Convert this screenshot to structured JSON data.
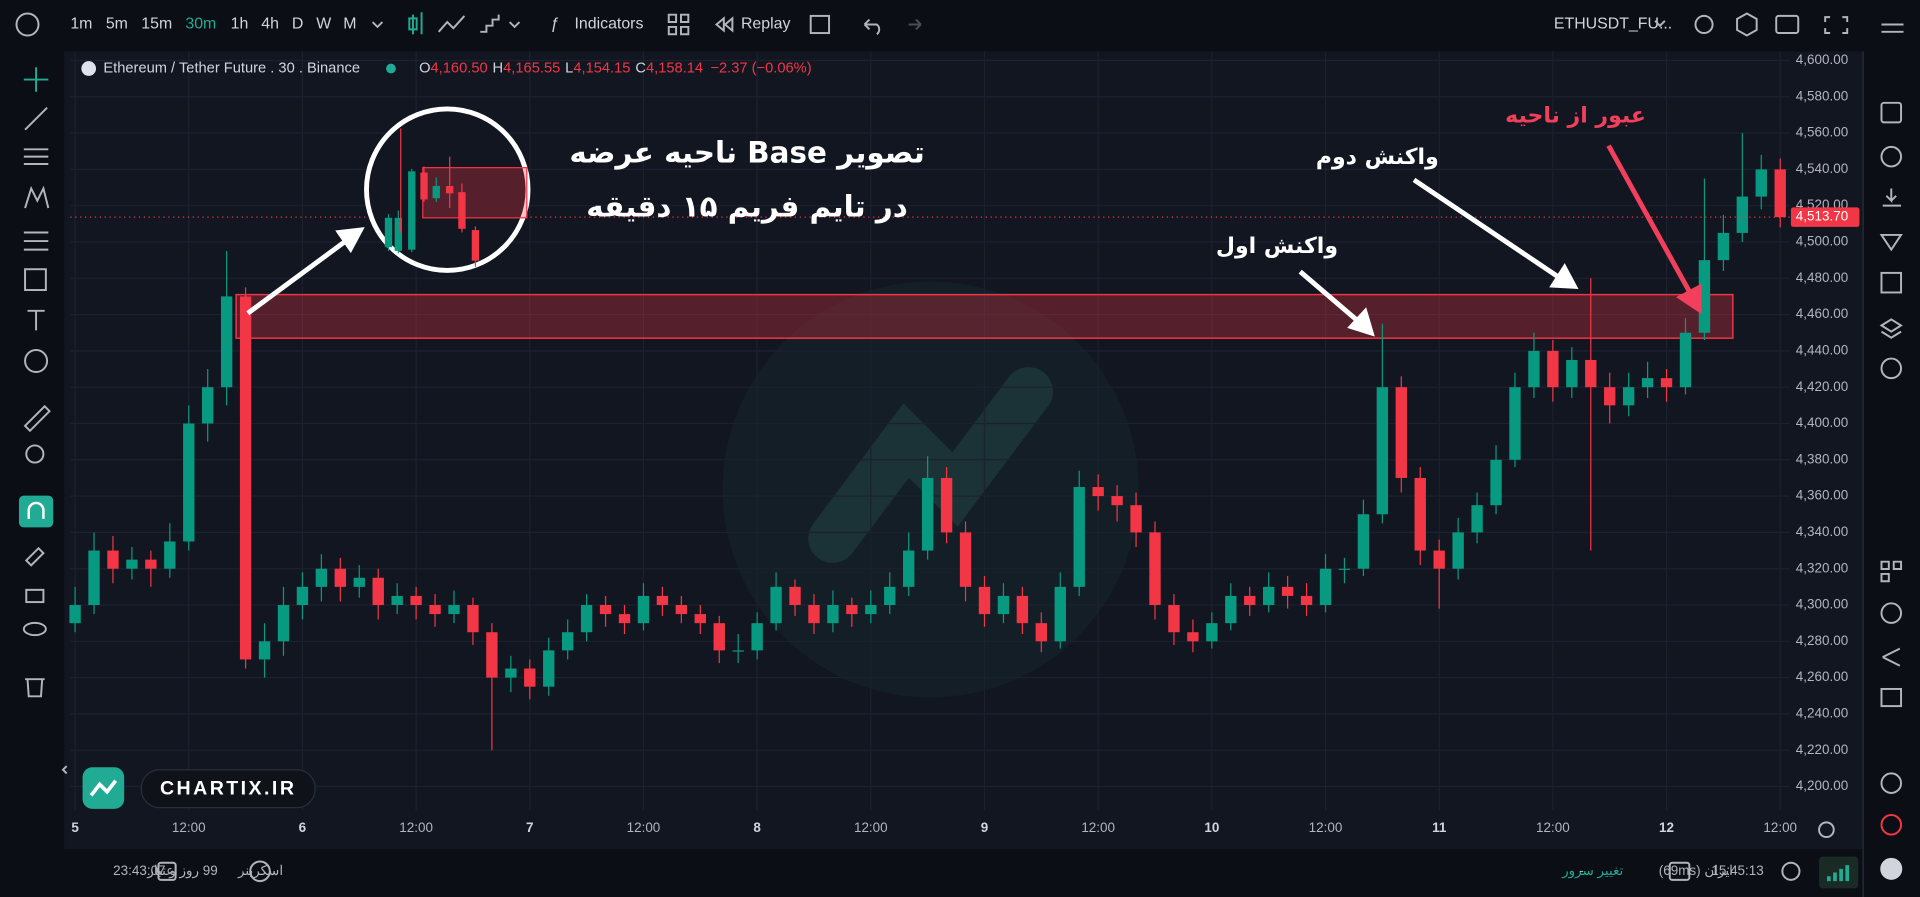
{
  "toolbar": {
    "intervals": [
      "1m",
      "5m",
      "15m",
      "30m",
      "1h",
      "4h",
      "D",
      "W",
      "M"
    ],
    "indicators": "Indicators",
    "replay": "Replay",
    "symbol": "ETHUSDT_FU..."
  },
  "legend": {
    "name": "Ethereum / Tether Future . 30 . Binance",
    "o": "O",
    "o_value": "4,160.50",
    "h": "H",
    "h_value": "4,165.55",
    "l": "L",
    "l_value": "4,154.15",
    "c": "C",
    "c_value": "4,158.14",
    "change": "−2.37 (−0.06%)"
  },
  "annotations": {
    "title_line1": "تصویر Base ناحیه عرضه",
    "title_line2": "در تایم فریم ۱۵ دقیقه",
    "first_reaction": "واکنش اول",
    "second_reaction": "واکنش دوم",
    "breakout": "عبور از ناحیه"
  },
  "brand": "CHARTIX.IR",
  "status_bar": {
    "credit_label": "اعتبار",
    "credit_value": "99 روز و 23:43:07",
    "screener": "اسکرینر",
    "change_server": "تغییر سرور",
    "dash": "-",
    "server": "ایران (69ms)",
    "clock": "15:45:13"
  },
  "chart_data": {
    "type": "candlestick",
    "up_color": "#089981",
    "down_color": "#f23645",
    "grid": true,
    "zone": {
      "top": 4471,
      "bottom": 4447,
      "x_start": 34,
      "x_end": 350,
      "color": "#f23645"
    },
    "last_price_label": "4,513.70",
    "xlim": [
      -1,
      362
    ],
    "xticks": [
      {
        "value": 0,
        "label": "5"
      },
      {
        "value": 24,
        "label": "12:00"
      },
      {
        "value": 48,
        "label": "6"
      },
      {
        "value": 72,
        "label": "12:00"
      },
      {
        "value": 96,
        "label": "7"
      },
      {
        "value": 120,
        "label": "12:00"
      },
      {
        "value": 144,
        "label": "8"
      },
      {
        "value": 168,
        "label": "12:00"
      },
      {
        "value": 192,
        "label": "9"
      },
      {
        "value": 216,
        "label": "12:00"
      },
      {
        "value": 240,
        "label": "10"
      },
      {
        "value": 264,
        "label": "12:00"
      },
      {
        "value": 288,
        "label": "11"
      },
      {
        "value": 312,
        "label": "12:00"
      },
      {
        "value": 336,
        "label": "12"
      },
      {
        "value": 360,
        "label": "12:00"
      }
    ],
    "ylim": [
      4187,
      4605
    ],
    "yticks": [
      {
        "value": 4200,
        "label": "4,200.00"
      },
      {
        "value": 4220,
        "label": "4,220.00"
      },
      {
        "value": 4240,
        "label": "4,240.00"
      },
      {
        "value": 4260,
        "label": "4,260.00"
      },
      {
        "value": 4280,
        "label": "4,280.00"
      },
      {
        "value": 4300,
        "label": "4,300.00"
      },
      {
        "value": 4320,
        "label": "4,320.00"
      },
      {
        "value": 4340,
        "label": "4,340.00"
      },
      {
        "value": 4360,
        "label": "4,360.00"
      },
      {
        "value": 4380,
        "label": "4,380.00"
      },
      {
        "value": 4400,
        "label": "4,400.00"
      },
      {
        "value": 4420,
        "label": "4,420.00"
      },
      {
        "value": 4440,
        "label": "4,440.00"
      },
      {
        "value": 4460,
        "label": "4,460.00"
      },
      {
        "value": 4480,
        "label": "4,480.00"
      },
      {
        "value": 4500,
        "label": "4,500.00"
      },
      {
        "value": 4520,
        "label": "4,520.00"
      },
      {
        "value": 4540,
        "label": "4,540.00"
      },
      {
        "value": 4560,
        "label": "4,560.00"
      },
      {
        "value": 4580,
        "label": "4,580.00"
      },
      {
        "value": 4600,
        "label": "4,600.00"
      }
    ],
    "x": [
      0,
      4,
      8,
      12,
      16,
      20,
      24,
      28,
      32,
      36,
      40,
      44,
      48,
      52,
      56,
      60,
      64,
      68,
      72,
      76,
      80,
      84,
      88,
      92,
      96,
      100,
      104,
      108,
      112,
      116,
      120,
      124,
      128,
      132,
      136,
      140,
      144,
      148,
      152,
      156,
      160,
      164,
      168,
      172,
      176,
      180,
      184,
      188,
      192,
      196,
      200,
      204,
      208,
      212,
      216,
      220,
      224,
      228,
      232,
      236,
      240,
      244,
      248,
      252,
      256,
      260,
      264,
      268,
      272,
      276,
      280,
      284,
      288,
      292,
      296,
      300,
      304,
      308,
      312,
      316,
      320,
      324,
      328,
      332,
      336,
      340,
      344,
      348,
      352,
      356,
      360
    ],
    "ohlc": [
      [
        4290,
        4310,
        4285,
        4300
      ],
      [
        4300,
        4340,
        4295,
        4330
      ],
      [
        4330,
        4338,
        4312,
        4320
      ],
      [
        4320,
        4332,
        4314,
        4325
      ],
      [
        4325,
        4330,
        4310,
        4320
      ],
      [
        4320,
        4345,
        4315,
        4335
      ],
      [
        4335,
        4410,
        4330,
        4400
      ],
      [
        4400,
        4430,
        4390,
        4420
      ],
      [
        4420,
        4495,
        4410,
        4470
      ],
      [
        4470,
        4475,
        4265,
        4270
      ],
      [
        4270,
        4290,
        4260,
        4280
      ],
      [
        4280,
        4310,
        4272,
        4300
      ],
      [
        4300,
        4318,
        4292,
        4310
      ],
      [
        4310,
        4328,
        4302,
        4320
      ],
      [
        4320,
        4326,
        4302,
        4310
      ],
      [
        4310,
        4322,
        4304,
        4315
      ],
      [
        4315,
        4320,
        4292,
        4300
      ],
      [
        4300,
        4312,
        4295,
        4305
      ],
      [
        4305,
        4310,
        4292,
        4300
      ],
      [
        4300,
        4306,
        4288,
        4295
      ],
      [
        4295,
        4308,
        4290,
        4300
      ],
      [
        4300,
        4304,
        4278,
        4285
      ],
      [
        4285,
        4290,
        4220,
        4260
      ],
      [
        4260,
        4272,
        4252,
        4265
      ],
      [
        4265,
        4270,
        4248,
        4255
      ],
      [
        4255,
        4282,
        4250,
        4275
      ],
      [
        4275,
        4292,
        4270,
        4285
      ],
      [
        4285,
        4306,
        4280,
        4300
      ],
      [
        4300,
        4305,
        4288,
        4295
      ],
      [
        4295,
        4300,
        4284,
        4290
      ],
      [
        4290,
        4312,
        4286,
        4305
      ],
      [
        4305,
        4310,
        4294,
        4300
      ],
      [
        4300,
        4305,
        4290,
        4295
      ],
      [
        4295,
        4300,
        4284,
        4290
      ],
      [
        4290,
        4294,
        4268,
        4275
      ],
      [
        4275,
        4284,
        4268,
        4275
      ],
      [
        4275,
        4296,
        4270,
        4290
      ],
      [
        4290,
        4318,
        4286,
        4310
      ],
      [
        4310,
        4314,
        4294,
        4300
      ],
      [
        4300,
        4306,
        4284,
        4290
      ],
      [
        4290,
        4308,
        4285,
        4300
      ],
      [
        4300,
        4304,
        4288,
        4295
      ],
      [
        4295,
        4308,
        4290,
        4300
      ],
      [
        4300,
        4318,
        4295,
        4310
      ],
      [
        4310,
        4340,
        4305,
        4330
      ],
      [
        4330,
        4382,
        4325,
        4370
      ],
      [
        4370,
        4376,
        4334,
        4340
      ],
      [
        4340,
        4346,
        4302,
        4310
      ],
      [
        4310,
        4316,
        4288,
        4295
      ],
      [
        4295,
        4312,
        4290,
        4305
      ],
      [
        4305,
        4310,
        4284,
        4290
      ],
      [
        4290,
        4296,
        4274,
        4280
      ],
      [
        4280,
        4318,
        4276,
        4310
      ],
      [
        4310,
        4374,
        4305,
        4365
      ],
      [
        4365,
        4372,
        4352,
        4360
      ],
      [
        4360,
        4366,
        4346,
        4355
      ],
      [
        4355,
        4362,
        4332,
        4340
      ],
      [
        4340,
        4346,
        4292,
        4300
      ],
      [
        4300,
        4306,
        4278,
        4285
      ],
      [
        4285,
        4292,
        4274,
        4280
      ],
      [
        4280,
        4296,
        4276,
        4290
      ],
      [
        4290,
        4312,
        4286,
        4305
      ],
      [
        4305,
        4310,
        4294,
        4300
      ],
      [
        4300,
        4318,
        4296,
        4310
      ],
      [
        4310,
        4316,
        4298,
        4305
      ],
      [
        4305,
        4312,
        4294,
        4300
      ],
      [
        4300,
        4328,
        4296,
        4320
      ],
      [
        4320,
        4326,
        4312,
        4320
      ],
      [
        4320,
        4358,
        4316,
        4350
      ],
      [
        4350,
        4455,
        4345,
        4420
      ],
      [
        4420,
        4426,
        4362,
        4370
      ],
      [
        4370,
        4376,
        4322,
        4330
      ],
      [
        4330,
        4336,
        4298,
        4320
      ],
      [
        4320,
        4348,
        4314,
        4340
      ],
      [
        4340,
        4362,
        4334,
        4355
      ],
      [
        4355,
        4388,
        4350,
        4380
      ],
      [
        4380,
        4428,
        4376,
        4420
      ],
      [
        4420,
        4450,
        4414,
        4440
      ],
      [
        4440,
        4446,
        4412,
        4420
      ],
      [
        4420,
        4442,
        4414,
        4435
      ],
      [
        4435,
        4480,
        4330,
        4420
      ],
      [
        4420,
        4428,
        4400,
        4410
      ],
      [
        4410,
        4428,
        4404,
        4420
      ],
      [
        4420,
        4434,
        4414,
        4425
      ],
      [
        4425,
        4430,
        4412,
        4420
      ],
      [
        4420,
        4458,
        4416,
        4450
      ],
      [
        4450,
        4535,
        4446,
        4490
      ],
      [
        4490,
        4515,
        4484,
        4505
      ],
      [
        4505,
        4560,
        4500,
        4525
      ],
      [
        4525,
        4548,
        4518,
        4540
      ],
      [
        4540,
        4546,
        4508,
        4513.7
      ]
    ]
  }
}
